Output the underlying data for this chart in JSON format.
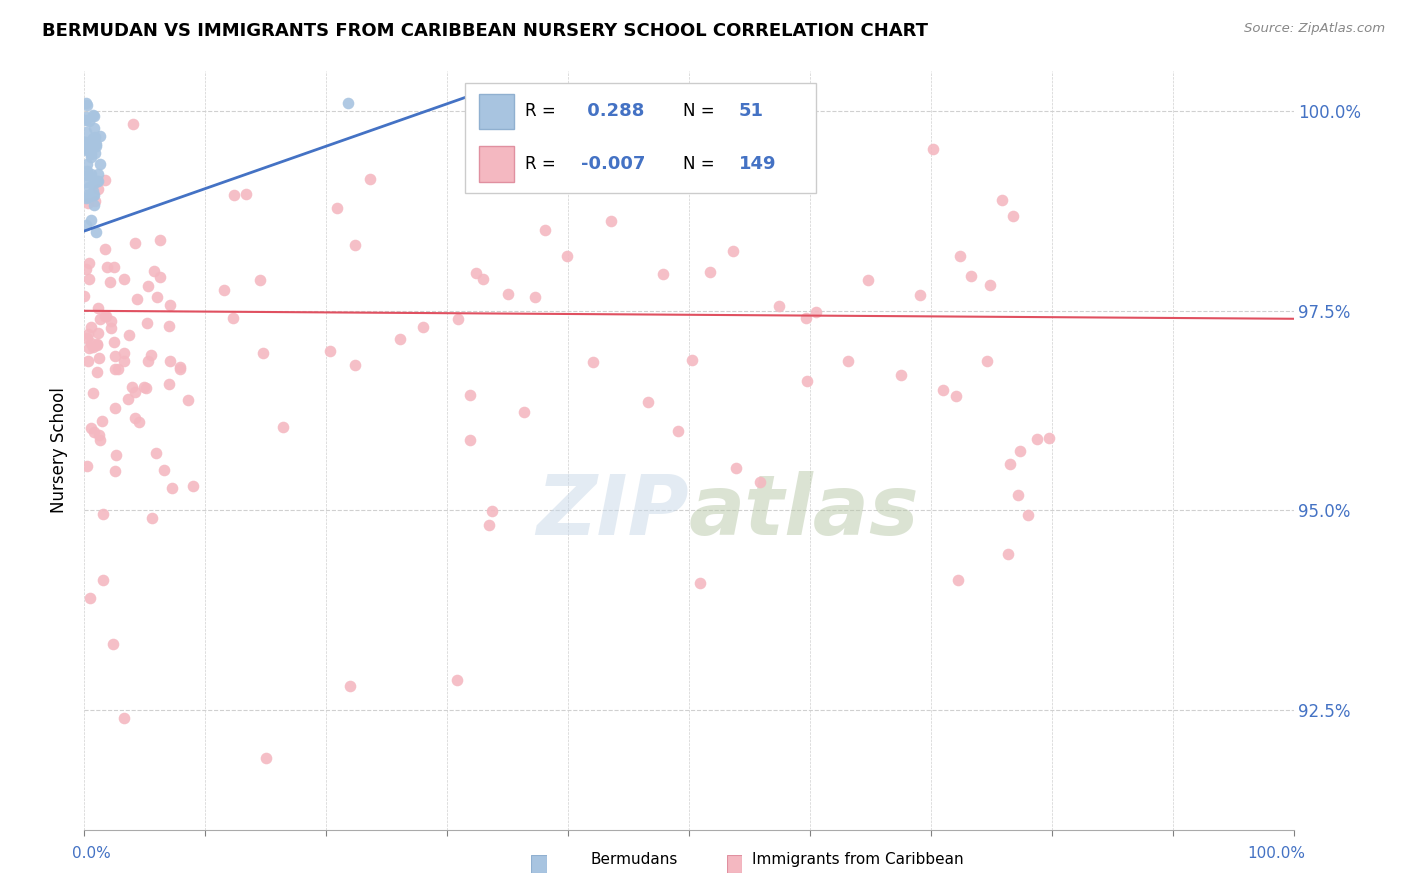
{
  "title": "BERMUDAN VS IMMIGRANTS FROM CARIBBEAN NURSERY SCHOOL CORRELATION CHART",
  "source": "Source: ZipAtlas.com",
  "ylabel": "Nursery School",
  "xlim": [
    0.0,
    1.0
  ],
  "ylim": [
    0.91,
    1.005
  ],
  "yticks": [
    0.925,
    0.95,
    0.975,
    1.0
  ],
  "ytick_labels": [
    "92.5%",
    "95.0%",
    "97.5%",
    "100.0%"
  ],
  "blue_R": 0.288,
  "blue_N": 51,
  "pink_R": -0.007,
  "pink_N": 149,
  "blue_color": "#a8c4e0",
  "pink_color": "#f4b8c1",
  "trendline_blue": "#4472c4",
  "trendline_pink": "#e05060",
  "grid_color": "#d0d0d0",
  "text_color": "#4472c4",
  "watermark": "ZIPatlas"
}
